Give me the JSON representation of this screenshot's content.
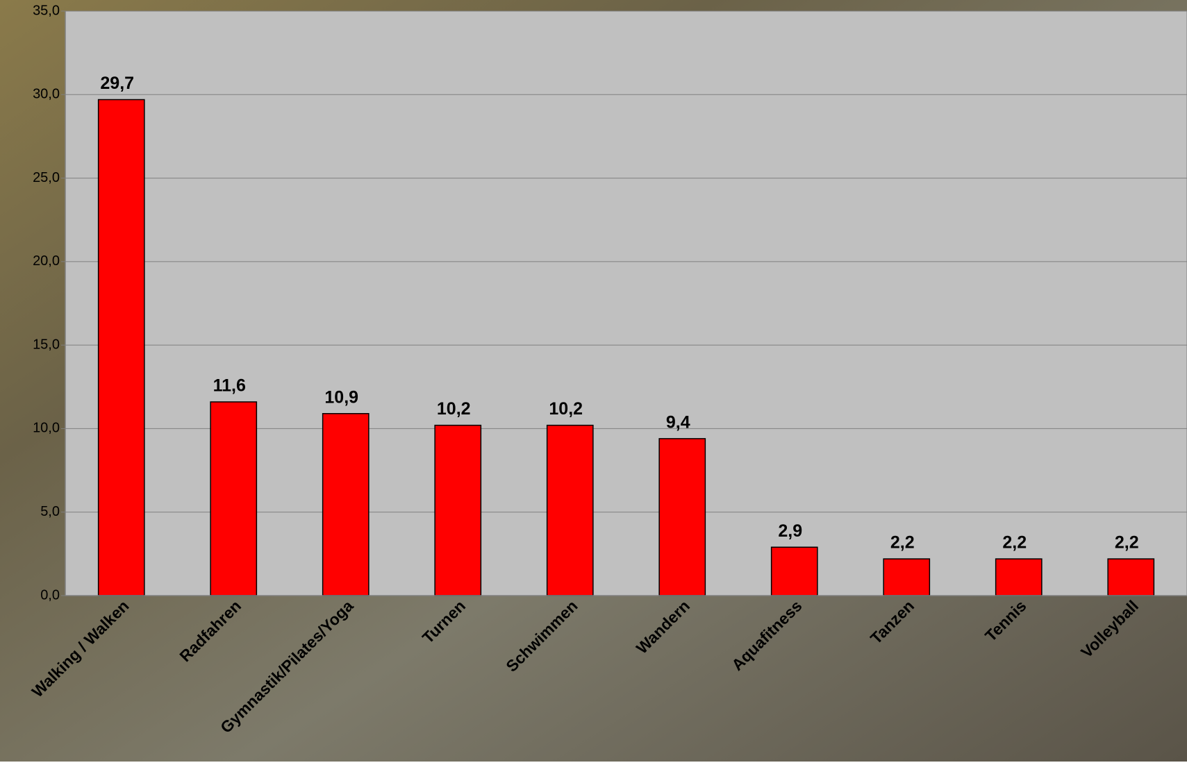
{
  "chart_data": {
    "type": "bar",
    "categories": [
      "Walking / Walken",
      "Radfahren",
      "Gymnastik/Pilates/Yoga",
      "Turnen",
      "Schwimmen",
      "Wandern",
      "Aquafitness",
      "Tanzen",
      "Tennis",
      "Volleyball"
    ],
    "values": [
      29.7,
      11.6,
      10.9,
      10.2,
      10.2,
      9.4,
      2.9,
      2.2,
      2.2,
      2.2
    ],
    "value_labels": [
      "29,7",
      "11,6",
      "10,9",
      "10,2",
      "10,2",
      "9,4",
      "2,9",
      "2,2",
      "2,2",
      "2,2"
    ],
    "color": "#ff0000",
    "ylim": [
      0,
      35
    ],
    "yticks": [
      {
        "value": 0,
        "label": "0,0"
      },
      {
        "value": 5,
        "label": "5,0"
      },
      {
        "value": 10,
        "label": "10,0"
      },
      {
        "value": 15,
        "label": "15,0"
      },
      {
        "value": 20,
        "label": "20,0"
      },
      {
        "value": 25,
        "label": "25,0"
      },
      {
        "value": 30,
        "label": "30,0"
      },
      {
        "value": 35,
        "label": "35,0"
      }
    ],
    "grid": true
  }
}
